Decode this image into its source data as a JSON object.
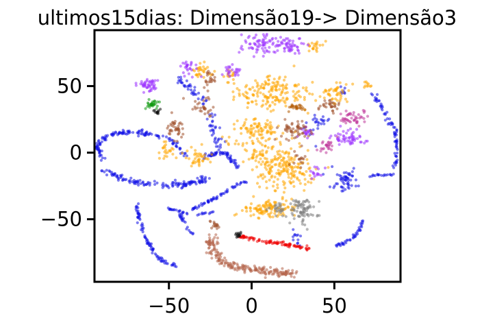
{
  "chart_data": {
    "type": "scatter",
    "title": "ultimos15dias: Dimensão19-> Dimensão3",
    "xlabel": "",
    "ylabel": "",
    "xlim": [
      -95,
      90
    ],
    "ylim": [
      -97,
      92
    ],
    "x_ticks": [
      {
        "value": -50,
        "label": "−50"
      },
      {
        "value": 0,
        "label": "0"
      },
      {
        "value": 50,
        "label": "50"
      }
    ],
    "y_ticks": [
      {
        "value": 50,
        "label": "50"
      },
      {
        "value": 0,
        "label": "0"
      },
      {
        "value": -50,
        "label": "−50"
      }
    ],
    "grid": false,
    "legend": "none",
    "point_alpha": 0.55,
    "colors": {
      "blue": "#1010e6",
      "orange": "#ffa500",
      "purple": "#9b30ff",
      "brown": "#a0522d",
      "sienna": "#b5654b",
      "red": "#ee0000",
      "gray": "#808080",
      "green": "#119911",
      "black": "#111111",
      "magenta": "#c0389a",
      "darkorange": "#b35a00"
    },
    "clusters": [
      {
        "color": "blue",
        "shape": "path",
        "points": [
          [
            -90,
            -5
          ],
          [
            -93,
            2
          ],
          [
            -92,
            8
          ],
          [
            -88,
            12
          ],
          [
            -80,
            15
          ],
          [
            -70,
            15
          ],
          [
            -60,
            14
          ],
          [
            -53,
            12
          ],
          [
            -47,
            8
          ],
          [
            -43,
            3
          ],
          [
            -40,
            -3
          ]
        ],
        "spread": 1.6,
        "n": 130
      },
      {
        "color": "blue",
        "shape": "path",
        "points": [
          [
            -90,
            -13
          ],
          [
            -83,
            -17
          ],
          [
            -75,
            -21
          ],
          [
            -65,
            -23
          ],
          [
            -55,
            -24
          ],
          [
            -45,
            -24
          ],
          [
            -36,
            -23
          ],
          [
            -30,
            -21
          ],
          [
            -27,
            -19
          ]
        ],
        "spread": 2.0,
        "n": 130
      },
      {
        "color": "blue",
        "shape": "path",
        "points": [
          [
            -70,
            -38
          ],
          [
            -68,
            -50
          ],
          [
            -64,
            -64
          ],
          [
            -59,
            -75
          ],
          [
            -53,
            -82
          ],
          [
            -46,
            -85
          ]
        ],
        "spread": 1.0,
        "n": 80
      },
      {
        "color": "blue",
        "shape": "path",
        "points": [
          [
            -50,
            -42
          ],
          [
            -44,
            -44
          ],
          [
            -38,
            -46
          ],
          [
            -30,
            -46
          ],
          [
            -22,
            -44
          ]
        ],
        "spread": 0.8,
        "n": 30
      },
      {
        "color": "blue",
        "shape": "path",
        "points": [
          [
            -44,
            -46
          ],
          [
            -41,
            -52
          ],
          [
            -38,
            -58
          ],
          [
            -35,
            -62
          ]
        ],
        "spread": 0.8,
        "n": 20
      },
      {
        "color": "blue",
        "shape": "path",
        "points": [
          [
            -36,
            -43
          ],
          [
            -30,
            -39
          ],
          [
            -22,
            -34
          ],
          [
            -14,
            -28
          ],
          [
            -7,
            -23
          ],
          [
            -3,
            -22
          ]
        ],
        "spread": 0.9,
        "n": 55
      },
      {
        "color": "blue",
        "shape": "path",
        "points": [
          [
            -30,
            -3
          ],
          [
            -25,
            -1
          ],
          [
            -20,
            0
          ],
          [
            -15,
            -1
          ],
          [
            -11,
            -6
          ],
          [
            -9,
            -12
          ]
        ],
        "spread": 1.8,
        "n": 60
      },
      {
        "color": "blue",
        "shape": "path",
        "points": [
          [
            -45,
            55
          ],
          [
            -40,
            52
          ],
          [
            -35,
            46
          ],
          [
            -30,
            40
          ],
          [
            -26,
            32
          ],
          [
            -24,
            22
          ],
          [
            -22,
            12
          ],
          [
            -20,
            6
          ]
        ],
        "spread": 2.4,
        "n": 70
      },
      {
        "color": "blue",
        "shape": "path",
        "points": [
          [
            73,
            45
          ],
          [
            77,
            38
          ],
          [
            80,
            32
          ],
          [
            82,
            26
          ],
          [
            84,
            20
          ]
        ],
        "spread": 1.4,
        "n": 30
      },
      {
        "color": "blue",
        "shape": "path",
        "points": [
          [
            85,
            24
          ],
          [
            87,
            14
          ],
          [
            88,
            4
          ],
          [
            87,
            -6
          ],
          [
            85,
            -13
          ]
        ],
        "spread": 1.0,
        "n": 40
      },
      {
        "color": "blue",
        "shape": "path",
        "points": [
          [
            71,
            -18
          ],
          [
            76,
            -17
          ],
          [
            82,
            -17
          ],
          [
            86,
            -16
          ]
        ],
        "spread": 0.6,
        "n": 18
      },
      {
        "color": "blue",
        "shape": "path",
        "points": [
          [
            50,
            -70
          ],
          [
            56,
            -68
          ],
          [
            62,
            -63
          ],
          [
            66,
            -56
          ],
          [
            67,
            -50
          ]
        ],
        "spread": 0.9,
        "n": 40
      },
      {
        "color": "blue",
        "shape": "blob",
        "cx": 56,
        "cy": -22,
        "rx": 7,
        "ry": 9,
        "n": 55
      },
      {
        "color": "blue",
        "shape": "blob",
        "cx": 40,
        "cy": 22,
        "rx": 8,
        "ry": 8,
        "n": 25
      },
      {
        "color": "blue",
        "shape": "blob",
        "cx": 28,
        "cy": -63,
        "rx": 3,
        "ry": 4,
        "n": 12
      },
      {
        "color": "blue",
        "shape": "blob",
        "cx": 55,
        "cy": 47,
        "rx": 2,
        "ry": 3,
        "n": 8
      },
      {
        "color": "orange",
        "shape": "blob",
        "cx": 13,
        "cy": 45,
        "rx": 22,
        "ry": 12,
        "n": 170
      },
      {
        "color": "orange",
        "shape": "blob",
        "cx": 2,
        "cy": 15,
        "rx": 16,
        "ry": 10,
        "n": 110
      },
      {
        "color": "orange",
        "shape": "blob",
        "cx": 20,
        "cy": -12,
        "rx": 17,
        "ry": 14,
        "n": 190
      },
      {
        "color": "orange",
        "shape": "blob",
        "cx": 10,
        "cy": -42,
        "rx": 14,
        "ry": 7,
        "n": 110
      },
      {
        "color": "orange",
        "shape": "blob",
        "cx": 50,
        "cy": 45,
        "rx": 7,
        "ry": 7,
        "n": 45
      },
      {
        "color": "orange",
        "shape": "blob",
        "cx": -52,
        "cy": 3,
        "rx": 4,
        "ry": 6,
        "n": 22
      },
      {
        "color": "orange",
        "shape": "blob",
        "cx": -32,
        "cy": -3,
        "rx": 7,
        "ry": 6,
        "n": 40
      },
      {
        "color": "orange",
        "shape": "blob",
        "cx": -30,
        "cy": 62,
        "rx": 6,
        "ry": 5,
        "n": 30
      },
      {
        "color": "orange",
        "shape": "blob",
        "cx": 38,
        "cy": 80,
        "rx": 6,
        "ry": 4,
        "n": 20
      },
      {
        "color": "orange",
        "shape": "blob",
        "cx": 70,
        "cy": 50,
        "rx": 3,
        "ry": 3,
        "n": 10
      },
      {
        "color": "orange",
        "shape": "blob",
        "cx": -14,
        "cy": 57,
        "rx": 4,
        "ry": 4,
        "n": 14
      },
      {
        "color": "orange",
        "shape": "blob",
        "cx": 3,
        "cy": -2,
        "rx": 6,
        "ry": 4,
        "n": 18
      },
      {
        "color": "purple",
        "shape": "blob",
        "cx": 5,
        "cy": 82,
        "rx": 10,
        "ry": 7,
        "n": 70
      },
      {
        "color": "purple",
        "shape": "blob",
        "cx": 23,
        "cy": 80,
        "rx": 8,
        "ry": 6,
        "n": 50
      },
      {
        "color": "purple",
        "shape": "blob",
        "cx": -62,
        "cy": 50,
        "rx": 6,
        "ry": 5,
        "n": 45
      },
      {
        "color": "purple",
        "shape": "blob",
        "cx": 58,
        "cy": 12,
        "rx": 10,
        "ry": 6,
        "n": 55
      },
      {
        "color": "purple",
        "shape": "blob",
        "cx": -38,
        "cy": 63,
        "rx": 5,
        "ry": 5,
        "n": 25
      },
      {
        "color": "purple",
        "shape": "blob",
        "cx": -12,
        "cy": 62,
        "rx": 6,
        "ry": 4,
        "n": 25
      },
      {
        "color": "purple",
        "shape": "blob",
        "cx": 33,
        "cy": 15,
        "rx": 5,
        "ry": 4,
        "n": 20
      },
      {
        "color": "purple",
        "shape": "blob",
        "cx": 40,
        "cy": -15,
        "rx": 4,
        "ry": 4,
        "n": 15
      },
      {
        "color": "brown",
        "shape": "blob",
        "cx": 27,
        "cy": 17,
        "rx": 9,
        "ry": 6,
        "n": 55
      },
      {
        "color": "brown",
        "shape": "blob",
        "cx": 47,
        "cy": 35,
        "rx": 6,
        "ry": 4,
        "n": 30
      },
      {
        "color": "brown",
        "shape": "blob",
        "cx": -46,
        "cy": 18,
        "rx": 6,
        "ry": 6,
        "n": 40
      },
      {
        "color": "brown",
        "shape": "blob",
        "cx": -30,
        "cy": 34,
        "rx": 6,
        "ry": 6,
        "n": 30
      },
      {
        "color": "brown",
        "shape": "blob",
        "cx": -26,
        "cy": 55,
        "rx": 4,
        "ry": 6,
        "n": 22
      },
      {
        "color": "brown",
        "shape": "blob",
        "cx": -22,
        "cy": -54,
        "rx": 2,
        "ry": 4,
        "n": 16
      },
      {
        "color": "brown",
        "shape": "blob",
        "cx": 30,
        "cy": -6,
        "rx": 5,
        "ry": 4,
        "n": 16
      },
      {
        "color": "darkorange",
        "shape": "blob",
        "cx": 27,
        "cy": 34,
        "rx": 6,
        "ry": 2,
        "n": 24
      },
      {
        "color": "magenta",
        "shape": "blob",
        "cx": 62,
        "cy": 25,
        "rx": 8,
        "ry": 6,
        "n": 45
      },
      {
        "color": "magenta",
        "shape": "blob",
        "cx": 45,
        "cy": 5,
        "rx": 6,
        "ry": 5,
        "n": 25
      },
      {
        "color": "sienna",
        "shape": "path",
        "points": [
          [
            -24,
            -63
          ],
          [
            -24,
            -72
          ],
          [
            -21,
            -79
          ],
          [
            -14,
            -84
          ],
          [
            -4,
            -87
          ],
          [
            8,
            -89
          ],
          [
            18,
            -90
          ],
          [
            26,
            -90
          ]
        ],
        "spread": 2.5,
        "n": 210
      },
      {
        "color": "red",
        "shape": "path",
        "points": [
          [
            -7,
            -63
          ],
          [
            5,
            -66
          ],
          [
            15,
            -68
          ],
          [
            25,
            -70
          ],
          [
            35,
            -72
          ]
        ],
        "spread": 1.3,
        "n": 90
      },
      {
        "color": "gray",
        "shape": "blob",
        "cx": 30,
        "cy": -43,
        "rx": 8,
        "ry": 10,
        "n": 80
      },
      {
        "color": "gray",
        "shape": "blob",
        "cx": 15,
        "cy": -42,
        "rx": 5,
        "ry": 4,
        "n": 22
      },
      {
        "color": "green",
        "shape": "blob",
        "cx": -60,
        "cy": 36,
        "rx": 4,
        "ry": 3,
        "n": 30
      },
      {
        "color": "black",
        "shape": "blob",
        "cx": -57,
        "cy": 31,
        "rx": 2,
        "ry": 2,
        "n": 12
      },
      {
        "color": "black",
        "shape": "blob",
        "cx": -8,
        "cy": -62,
        "rx": 2,
        "ry": 2,
        "n": 14
      }
    ]
  }
}
